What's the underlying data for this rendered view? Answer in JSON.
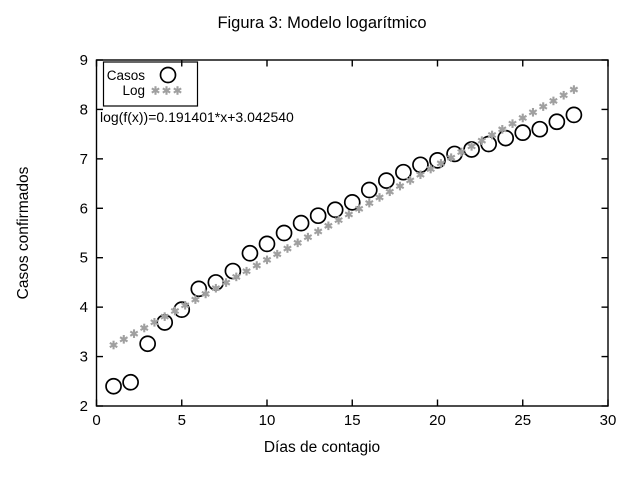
{
  "window": {
    "background": "#ffffff"
  },
  "chart_data": {
    "type": "scatter",
    "title": "Figura 3: Modelo logarítmico",
    "xlabel": "Días de contagio",
    "ylabel": "Casos confirmados",
    "annotation": "log(f(x))=0.191401*x+3.042540",
    "xlim": [
      0,
      30
    ],
    "ylim": [
      2,
      9
    ],
    "xticks": [
      0,
      5,
      10,
      15,
      20,
      25,
      30
    ],
    "yticks": [
      2,
      3,
      4,
      5,
      6,
      7,
      8,
      9
    ],
    "grid": false,
    "legend_position": "top-left",
    "axis_color": "#000000",
    "series": [
      {
        "name": "Casos",
        "marker": "circle",
        "color": "#000000",
        "x": [
          1,
          2,
          3,
          4,
          5,
          6,
          7,
          8,
          9,
          10,
          11,
          12,
          13,
          14,
          15,
          16,
          17,
          18,
          19,
          20,
          21,
          22,
          23,
          24,
          25,
          26,
          27,
          28
        ],
        "y": [
          2.4,
          2.48,
          3.26,
          3.69,
          3.95,
          4.37,
          4.5,
          4.73,
          5.09,
          5.28,
          5.5,
          5.7,
          5.85,
          5.97,
          6.12,
          6.37,
          6.56,
          6.73,
          6.88,
          6.97,
          7.1,
          7.19,
          7.3,
          7.42,
          7.53,
          7.6,
          7.75,
          7.89
        ]
      },
      {
        "name": "Log",
        "marker": "asterisk",
        "color": "#a0a0a0",
        "fit": {
          "slope": 0.191401,
          "intercept": 3.04254,
          "x_start": 1,
          "x_end": 28,
          "step": 0.6
        }
      }
    ]
  }
}
